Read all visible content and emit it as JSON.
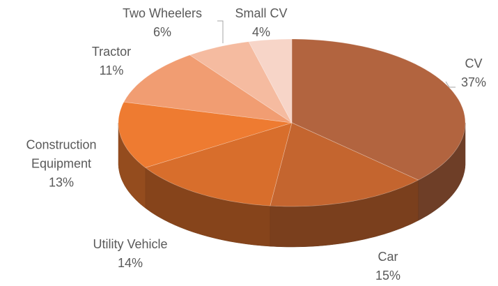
{
  "chart_data": {
    "type": "pie3d",
    "categories": [
      "CV",
      "Car",
      "Utility Vehicle",
      "Construction Equipment",
      "Tractor",
      "Two Wheelers",
      "Small CV"
    ],
    "values": [
      37,
      15,
      14,
      13,
      11,
      6,
      4
    ],
    "value_labels": [
      "37%",
      "15%",
      "14%",
      "13%",
      "11%",
      "6%",
      "4%"
    ],
    "colors": [
      "#b2643f",
      "#c4652f",
      "#d86e2c",
      "#ee7b31",
      "#f19d72",
      "#f5bba0",
      "#f7d5c8"
    ]
  }
}
